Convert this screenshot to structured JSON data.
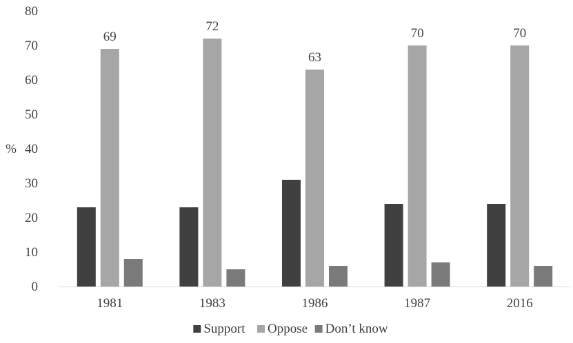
{
  "chart_data": {
    "type": "bar",
    "title": "",
    "xlabel": "",
    "ylabel": "%",
    "ylim": [
      0,
      80
    ],
    "yticks": [
      0,
      10,
      20,
      30,
      40,
      50,
      60,
      70,
      80
    ],
    "categories": [
      "1981",
      "1983",
      "1986",
      "1987",
      "2016"
    ],
    "series": [
      {
        "name": "Support",
        "color": "#404040",
        "values": [
          23,
          23,
          31,
          24,
          24
        ]
      },
      {
        "name": "Oppose",
        "color": "#a6a6a6",
        "values": [
          69,
          72,
          63,
          70,
          70
        ],
        "data_labels": [
          "69",
          "72",
          "63",
          "70",
          "70"
        ]
      },
      {
        "name": "Don’t know",
        "color": "#7a7a7a",
        "values": [
          8,
          5,
          6,
          7,
          6
        ]
      }
    ],
    "grid": false,
    "legend_position": "bottom"
  }
}
